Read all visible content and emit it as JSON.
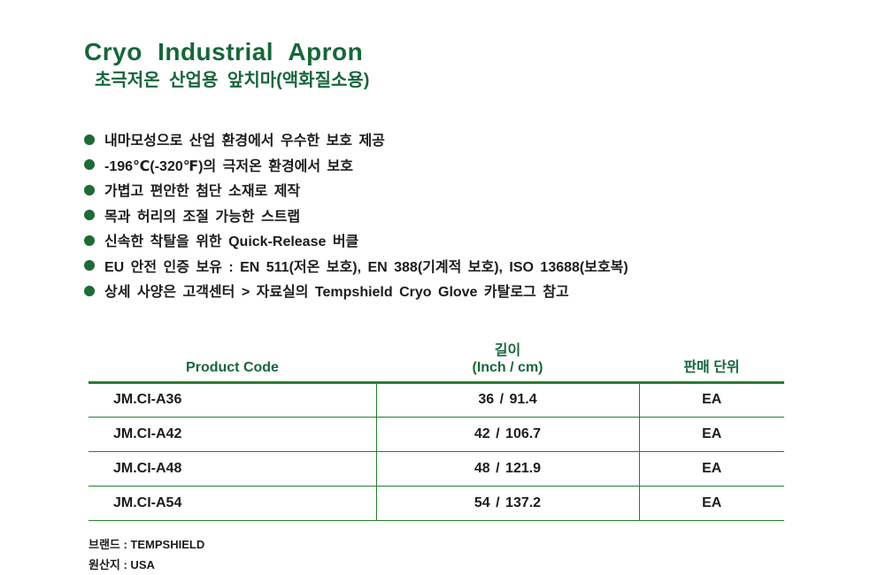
{
  "page": {
    "title": "Cryo Industrial Apron",
    "subtitle": "초극저온 산업용 앞치마(액화질소용)"
  },
  "features": [
    "내마모성으로 산업 환경에서 우수한 보호 제공",
    "-196℃(-320℉)의 극저온 환경에서 보호",
    "가볍고 편안한 첨단 소재로 제작",
    "목과 허리의 조절 가능한 스트랩",
    "신속한 착탈을 위한 Quick-Release 버클",
    "EU 안전 인증 보유 : EN 511(저온 보호), EN 388(기계적 보호), ISO 13688(보호복)",
    "상세 사양은 고객센터 > 자료실의 Tempshield Cryo Glove 카탈로그 참고"
  ],
  "table": {
    "headers": {
      "product_code": "Product Code",
      "length_line1": "길이",
      "length_line2": "(Inch / cm)",
      "sales_unit": "판매 단위"
    },
    "rows": [
      {
        "code": "JM.CI-A36",
        "length": "36 / 91.4",
        "unit": "EA"
      },
      {
        "code": "JM.CI-A42",
        "length": "42 / 106.7",
        "unit": "EA"
      },
      {
        "code": "JM.CI-A48",
        "length": "48 / 121.9",
        "unit": "EA"
      },
      {
        "code": "JM.CI-A54",
        "length": "54 / 137.2",
        "unit": "EA"
      }
    ]
  },
  "footer": {
    "brand": "브랜드 : TEMPSHIELD",
    "origin": "원산지 : USA"
  },
  "colors": {
    "heading_green": "#17663a",
    "table_line_green": "#2a7d2e",
    "bullet_green": "#1d6b35",
    "body_text": "#1c1c1c"
  }
}
